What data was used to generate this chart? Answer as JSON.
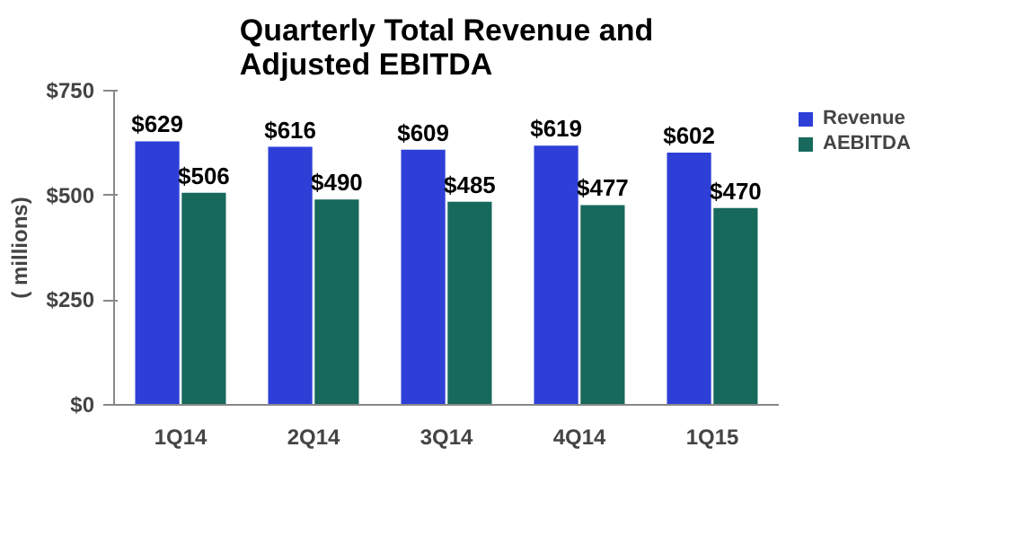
{
  "chart_data": {
    "type": "bar",
    "title": "Quarterly Total Revenue and Adjusted EBITDA",
    "ylabel": "( millions)",
    "categories": [
      "1Q14",
      "2Q14",
      "3Q14",
      "4Q14",
      "1Q15"
    ],
    "series": [
      {
        "name": "Revenue",
        "color": "#2e3fd8",
        "values": [
          629,
          616,
          609,
          619,
          602
        ],
        "value_labels": [
          "$629",
          "$616",
          "$609",
          "$619",
          "$602"
        ]
      },
      {
        "name": "AEBITDA",
        "color": "#17695c",
        "values": [
          506,
          490,
          485,
          477,
          470
        ],
        "value_labels": [
          "$506",
          "$490",
          "$485",
          "$477",
          "$470"
        ]
      }
    ],
    "ylim": [
      0,
      750
    ],
    "yticks": [
      {
        "value": 0,
        "label": "$0"
      },
      {
        "value": 250,
        "label": "$250"
      },
      {
        "value": 500,
        "label": "$500"
      },
      {
        "value": 750,
        "label": "$750"
      }
    ],
    "grid": false,
    "legend": "right"
  }
}
